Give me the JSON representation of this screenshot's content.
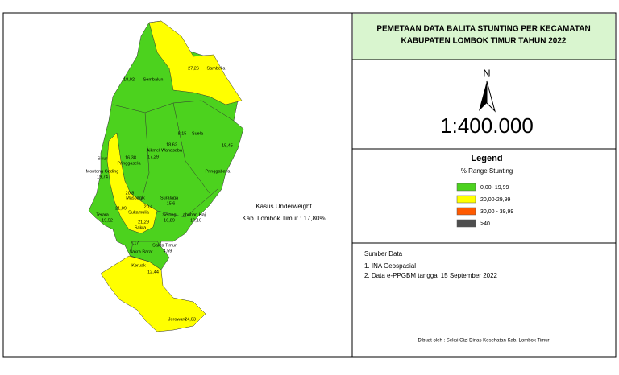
{
  "header": {
    "title_line1": "PEMETAAN DATA BALITA STUNTING PER KECAMATAN",
    "title_line2": "KABUPATEN LOMBOK TIMUR TAHUN 2022"
  },
  "north": "N",
  "scale": "1:400.000",
  "legend": {
    "title": "Legend",
    "subtitle": "% Range Stunting",
    "items": [
      {
        "label": "0,00- 19,99",
        "color": "#4cd21e"
      },
      {
        "label": "20,00-29,99",
        "color": "#ffff00"
      },
      {
        "label": "30,00 - 39,99",
        "color": "#ff5a00"
      },
      {
        "label": ">40",
        "color": "#4e4e4e"
      }
    ]
  },
  "annotation": {
    "line1": "Kasus Underweight",
    "line2": "Kab. Lombok Timur : 17,80%"
  },
  "sources": {
    "title": "Sumber Data :",
    "items": [
      "1. INA Geospasial",
      "2. Data e-PPGBM tanggal 15 September 2022"
    ]
  },
  "credit": "Dibuat oleh : Seksi Gizi Dinas Kesehatan Kab. Lombok Timur",
  "map_labels": [
    "27,26",
    "Sambelia",
    "18,02",
    "Sembalun",
    "8,15",
    "Suela",
    "18,62",
    "Wanasaba",
    "Aikmel",
    "17,29",
    "15,45",
    "Pringgabaya",
    "Sikur",
    "16,38",
    "Pringgasela",
    "Montong Gading",
    "19,74",
    "20,8",
    "Masbagik",
    "Terara",
    "19,52",
    "21,09",
    "20,4",
    "Sukamulia",
    "21,29",
    "Sakra",
    "Suralaga",
    "15,6",
    "Selong",
    "16,89",
    "Labuhan Haji",
    "19,16",
    "7,17",
    "Sakra Barat",
    "Sakra Timur",
    "4,59",
    "Keruak",
    "12,44",
    "Jerowaru",
    "24,03"
  ]
}
